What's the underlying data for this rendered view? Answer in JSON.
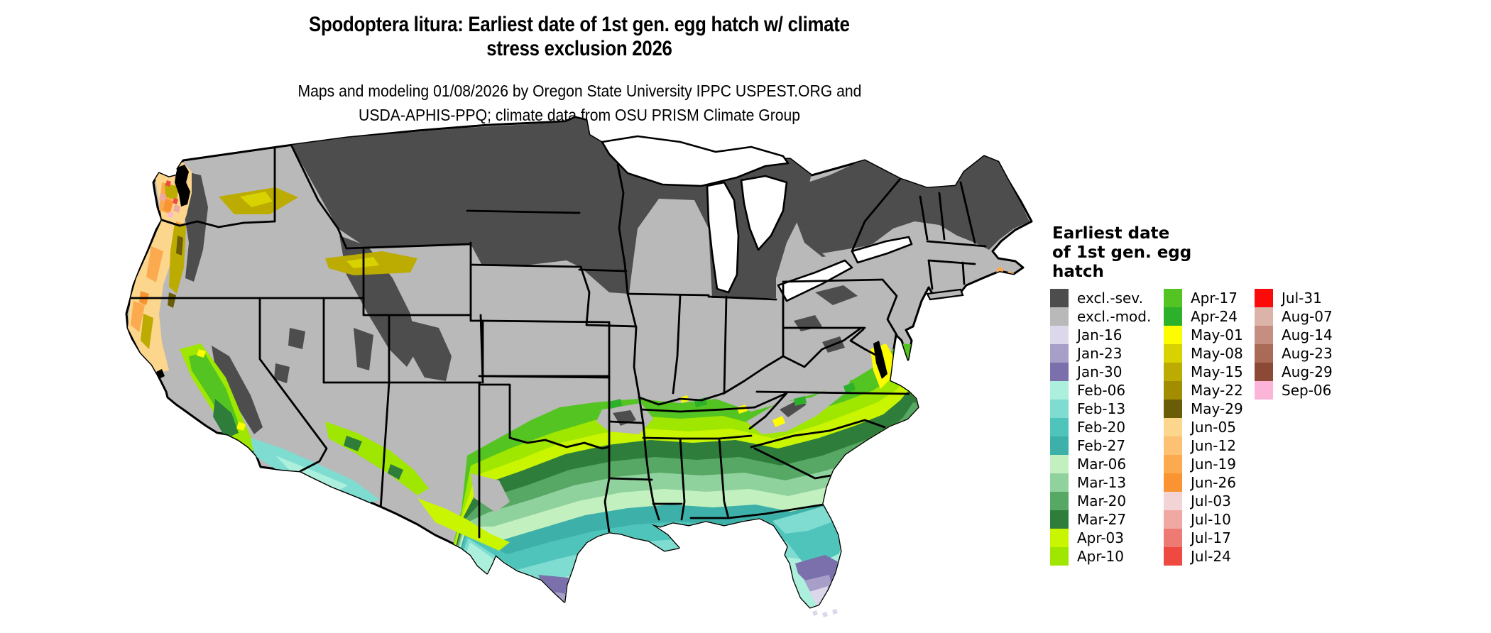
{
  "title": {
    "line1": "Spodoptera litura: Earliest date of 1st gen. egg hatch w/ climate",
    "line2": "stress exclusion 2026"
  },
  "subtitle": {
    "line1": "Maps and modeling 01/08/2026 by Oregon State University IPPC USPEST.ORG and",
    "line2": "USDA-APHIS-PPQ; climate data from OSU PRISM Climate Group"
  },
  "legend": {
    "title": "Earliest date\nof 1st gen. egg\nhatch",
    "columns": [
      [
        {
          "label": "excl.-sev.",
          "color": "#4d4d4d"
        },
        {
          "label": "excl.-mod.",
          "color": "#b9b9b9"
        },
        {
          "label": "Jan-16",
          "color": "#ddd7eb"
        },
        {
          "label": "Jan-23",
          "color": "#a89fc9"
        },
        {
          "label": "Jan-30",
          "color": "#7b70ac"
        },
        {
          "label": "Feb-06",
          "color": "#abefdc"
        },
        {
          "label": "Feb-13",
          "color": "#7fdcd1"
        },
        {
          "label": "Feb-20",
          "color": "#4fc4bb"
        },
        {
          "label": "Feb-27",
          "color": "#3cb0a9"
        },
        {
          "label": "Mar-06",
          "color": "#c3f0bf"
        },
        {
          "label": "Mar-13",
          "color": "#90d29e"
        },
        {
          "label": "Mar-20",
          "color": "#57a765"
        },
        {
          "label": "Mar-27",
          "color": "#2e7d3b"
        },
        {
          "label": "Apr-03",
          "color": "#c9f500"
        },
        {
          "label": "Apr-10",
          "color": "#9fe700"
        }
      ],
      [
        {
          "label": "Apr-17",
          "color": "#54c422"
        },
        {
          "label": "Apr-24",
          "color": "#2db02a"
        },
        {
          "label": "May-01",
          "color": "#fdfd00"
        },
        {
          "label": "May-08",
          "color": "#d8d200"
        },
        {
          "label": "May-15",
          "color": "#bcab00"
        },
        {
          "label": "May-22",
          "color": "#a28d00"
        },
        {
          "label": "May-29",
          "color": "#6b5d07"
        },
        {
          "label": "Jun-05",
          "color": "#fbd68c"
        },
        {
          "label": "Jun-12",
          "color": "#fcc172"
        },
        {
          "label": "Jun-19",
          "color": "#fbaa50"
        },
        {
          "label": "Jun-26",
          "color": "#fa9432"
        },
        {
          "label": "Jul-03",
          "color": "#f3d4d6"
        },
        {
          "label": "Jul-10",
          "color": "#f0a8a3"
        },
        {
          "label": "Jul-17",
          "color": "#ed7a73"
        },
        {
          "label": "Jul-24",
          "color": "#ee4a41"
        }
      ],
      [
        {
          "label": "Jul-31",
          "color": "#fb0a0a"
        },
        {
          "label": "Aug-07",
          "color": "#dcb3a9"
        },
        {
          "label": "Aug-14",
          "color": "#c68e80"
        },
        {
          "label": "Aug-23",
          "color": "#aa6a58"
        },
        {
          "label": "Aug-29",
          "color": "#8c4a36"
        },
        {
          "label": "Sep-06",
          "color": "#fdb4d9"
        }
      ]
    ]
  },
  "chart_data": {
    "type": "heatmap",
    "subtype": "choropleth-map-conus",
    "title": "Spodoptera litura: Earliest date of 1st gen. egg hatch w/ climate stress exclusion 2026",
    "legend_title": "Earliest date of 1st gen. egg hatch",
    "legend_position": "right",
    "categories": [
      "excl.-sev.",
      "excl.-mod.",
      "Jan-16",
      "Jan-23",
      "Jan-30",
      "Feb-06",
      "Feb-13",
      "Feb-20",
      "Feb-27",
      "Mar-06",
      "Mar-13",
      "Mar-20",
      "Mar-27",
      "Apr-03",
      "Apr-10",
      "Apr-17",
      "Apr-24",
      "May-01",
      "May-08",
      "May-15",
      "May-22",
      "May-29",
      "Jun-05",
      "Jun-12",
      "Jun-19",
      "Jun-26",
      "Jul-03",
      "Jul-10",
      "Jul-17",
      "Jul-24",
      "Jul-31",
      "Aug-07",
      "Aug-14",
      "Aug-23",
      "Aug-29",
      "Sep-06"
    ],
    "colors": [
      "#4d4d4d",
      "#b9b9b9",
      "#ddd7eb",
      "#a89fc9",
      "#7b70ac",
      "#abefdc",
      "#7fdcd1",
      "#4fc4bb",
      "#3cb0a9",
      "#c3f0bf",
      "#90d29e",
      "#57a765",
      "#2e7d3b",
      "#c9f500",
      "#9fe700",
      "#54c422",
      "#2db02a",
      "#fdfd00",
      "#d8d200",
      "#bcab00",
      "#a28d00",
      "#6b5d07",
      "#fbd68c",
      "#fcc172",
      "#fbaa50",
      "#fa9432",
      "#f3d4d6",
      "#f0a8a3",
      "#ed7a73",
      "#ee4a41",
      "#fb0a0a",
      "#dcb3a9",
      "#c68e80",
      "#aa6a58",
      "#8c4a36",
      "#fdb4d9"
    ],
    "regions_read_from_map": [
      {
        "region": "Northern tier (MT, ND, MN, WI, northern MI, upstate NY, northern New England) and high Rockies/Sierra",
        "value": "excl.-sev."
      },
      {
        "region": "Central interior (Great Basin, Plains, Midwest, Ohio Valley, mid-Atlantic interior)",
        "value": "excl.-mod."
      },
      {
        "region": "Band across KY/TN/VA/NC and Ozarks fringe",
        "value": "Apr-17 to Apr-24 with May-01 flecks"
      },
      {
        "region": "Band across AR, northern MS/AL/GA, SC piedmont",
        "value": "Apr-03 to Apr-10"
      },
      {
        "region": "Deep South banding toward Gulf (Mar-27 through Feb-06 going south)",
        "value": "Mar-27, Mar-20, Mar-13, Mar-06, Feb-27, Feb-20, Feb-13, Feb-06"
      },
      {
        "region": "South Texas tip and south Florida",
        "value": "Jan-30, Jan-23, Jan-16"
      },
      {
        "region": "California Central Valley and coastal southwest deserts",
        "value": "Apr-17 ring with Mar-27 core; Feb teal in SoCal/AZ low desert"
      },
      {
        "region": "Pacific Northwest coast and valleys",
        "value": "Jun-05 to Jun-26 tans/oranges with May olive valleys and Jul pink/red flecks"
      },
      {
        "region": "Chesapeake/Delmarva coastal pocket",
        "value": "May-01"
      },
      {
        "region": "Cape Cod coastal flecks",
        "value": "Jun-19 / Jun-26"
      }
    ]
  }
}
